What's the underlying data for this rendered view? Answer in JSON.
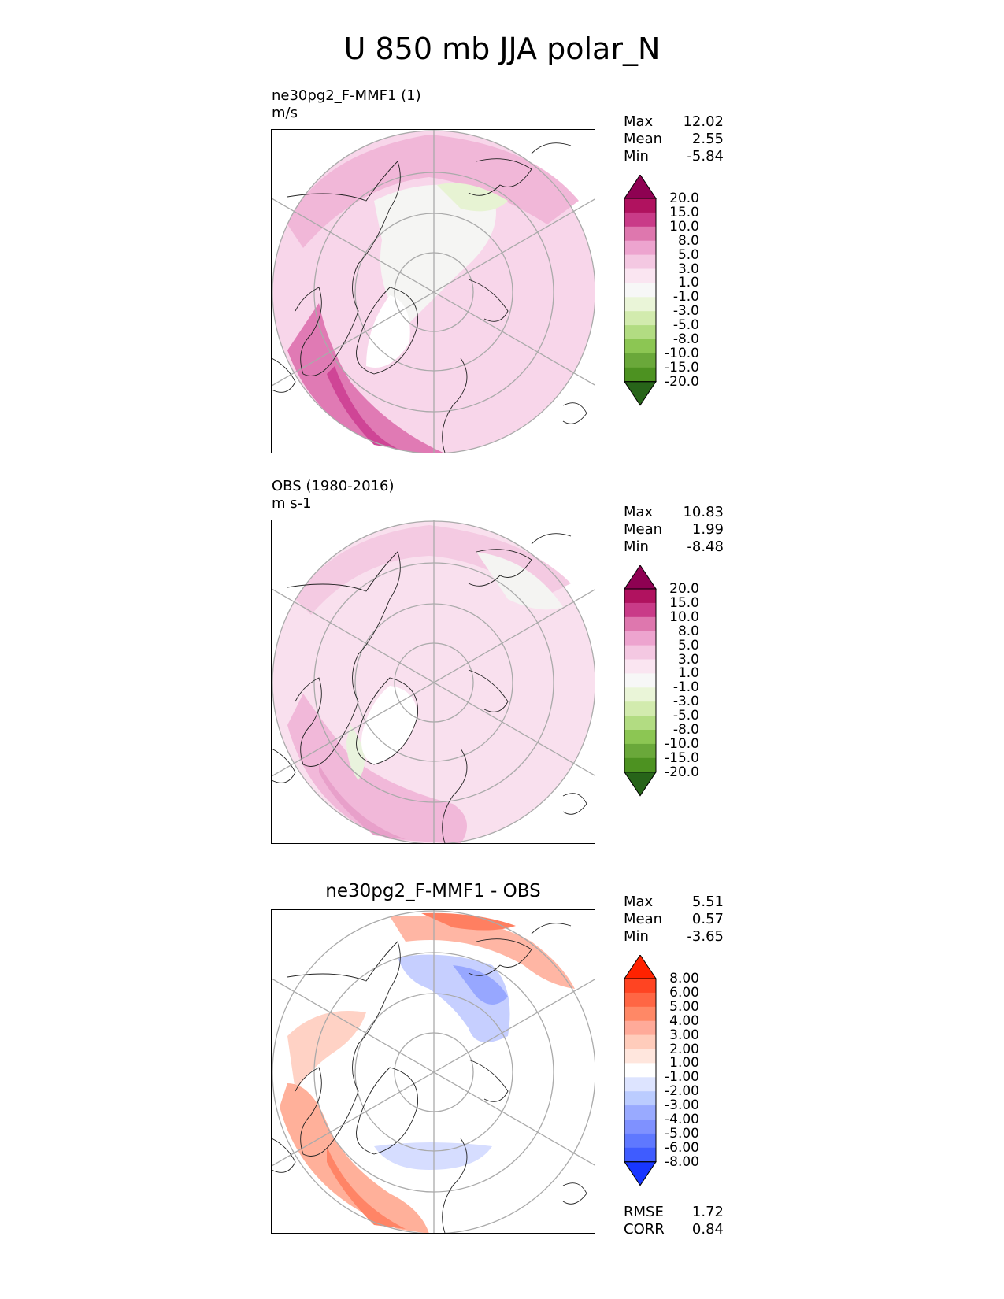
{
  "figure": {
    "title": "U 850 mb JJA polar_N"
  },
  "panels": [
    {
      "id": "test",
      "title_line1": "ne30pg2_F-MMF1 (1)",
      "title_line2": "m/s",
      "stats": {
        "max_label": "Max",
        "max": "12.02",
        "mean_label": "Mean",
        "mean": "2.55",
        "min_label": "Min",
        "min": "-5.84"
      },
      "colorbar": {
        "colors": [
          "#8e0152",
          "#b0125f",
          "#c93b88",
          "#de77ae",
          "#eda4cf",
          "#f4c8e2",
          "#fae5f1",
          "#f7f7f7",
          "#eaf5d8",
          "#d2ebae",
          "#b2dc82",
          "#8cc653",
          "#6aa83a",
          "#4d9221",
          "#276419"
        ],
        "labels": [
          "20.0",
          "15.0",
          "10.0",
          "8.0",
          "5.0",
          "3.0",
          "1.0",
          "-1.0",
          "-3.0",
          "-5.0",
          "-8.0",
          "-10.0",
          "-15.0",
          "-20.0"
        ]
      }
    },
    {
      "id": "ref",
      "title_line1": "OBS (1980-2016)",
      "title_line2": "m s-1",
      "stats": {
        "max_label": "Max",
        "max": "10.83",
        "mean_label": "Mean",
        "mean": "1.99",
        "min_label": "Min",
        "min": "-8.48"
      },
      "colorbar": {
        "colors": [
          "#8e0152",
          "#b0125f",
          "#c93b88",
          "#de77ae",
          "#eda4cf",
          "#f4c8e2",
          "#fae5f1",
          "#f7f7f7",
          "#eaf5d8",
          "#d2ebae",
          "#b2dc82",
          "#8cc653",
          "#6aa83a",
          "#4d9221",
          "#276419"
        ],
        "labels": [
          "20.0",
          "15.0",
          "10.0",
          "8.0",
          "5.0",
          "3.0",
          "1.0",
          "-1.0",
          "-3.0",
          "-5.0",
          "-8.0",
          "-10.0",
          "-15.0",
          "-20.0"
        ]
      }
    },
    {
      "id": "diff",
      "title": "ne30pg2_F-MMF1 - OBS",
      "stats": {
        "max_label": "Max",
        "max": "5.51",
        "mean_label": "Mean",
        "mean": "0.57",
        "min_label": "Min",
        "min": "-3.65"
      },
      "colorbar": {
        "colors": [
          "#ff2200",
          "#ff4422",
          "#ff6644",
          "#ff8866",
          "#ffaa99",
          "#ffccbb",
          "#ffe6dd",
          "#ffffff",
          "#dde4ff",
          "#bbccff",
          "#99aaff",
          "#7f91ff",
          "#5f78ff",
          "#3f5cff",
          "#1836ff"
        ],
        "labels": [
          "8.00",
          "6.00",
          "5.00",
          "4.00",
          "3.00",
          "2.00",
          "1.00",
          "-1.00",
          "-2.00",
          "-3.00",
          "-4.00",
          "-5.00",
          "-6.00",
          "-8.00"
        ]
      },
      "metrics": {
        "rmse_label": "RMSE",
        "rmse": "1.72",
        "corr_label": "CORR",
        "corr": "0.84"
      }
    }
  ]
}
